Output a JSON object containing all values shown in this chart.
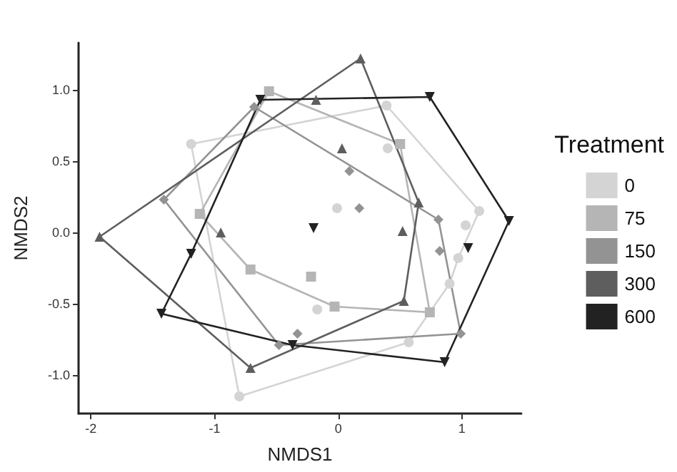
{
  "chart_data": {
    "type": "scatter",
    "xlabel": "NMDS1",
    "ylabel": "NMDS2",
    "legend_title": "Treatment",
    "legend": "right",
    "grid": false,
    "xlim": [
      -2.1,
      1.48
    ],
    "xticks": [
      -2,
      -1,
      0,
      1
    ],
    "ylim": [
      -1.27,
      1.33
    ],
    "yticks": [
      {
        "value": -1,
        "label": "-1.0"
      },
      {
        "value": -0.5,
        "label": "-0.5"
      },
      {
        "value": 0,
        "label": "0.0"
      },
      {
        "value": 0.5,
        "label": "0.5"
      },
      {
        "value": 1,
        "label": "1.0"
      }
    ],
    "series": [
      {
        "name": "0",
        "color": "#d4d4d4",
        "marker": "circle",
        "x": [
          -1.19,
          0.39,
          1.14,
          1.03,
          0.97,
          0.9,
          0.57,
          -0.8,
          0.4,
          -0.01,
          -0.17
        ],
        "values": [
          0.62,
          0.89,
          0.15,
          0.05,
          -0.18,
          -0.36,
          -0.77,
          -1.15,
          0.59,
          0.17,
          -0.54
        ]
      },
      {
        "name": "75",
        "color": "#b5b5b5",
        "marker": "square",
        "x": [
          -0.56,
          0.5,
          0.74,
          -0.03,
          -0.71,
          -1.12,
          -0.22
        ],
        "values": [
          0.99,
          0.62,
          -0.56,
          -0.52,
          -0.26,
          0.13,
          -0.31
        ]
      },
      {
        "name": "150",
        "color": "#939393",
        "marker": "diamond",
        "x": [
          -0.68,
          0.81,
          0.99,
          -0.48,
          -1.41,
          -0.33,
          0.82,
          0.09,
          0.17
        ],
        "values": [
          0.88,
          0.09,
          -0.71,
          -0.79,
          0.23,
          -0.71,
          -0.13,
          0.43,
          0.17
        ]
      },
      {
        "name": "300",
        "color": "#5e5e5e",
        "marker": "triangle",
        "x": [
          -1.93,
          0.18,
          0.65,
          0.53,
          -0.71,
          -0.18,
          0.03,
          0.52,
          -0.95
        ],
        "values": [
          -0.03,
          1.22,
          0.21,
          -0.48,
          -0.95,
          0.93,
          0.59,
          0.01,
          0.0
        ]
      },
      {
        "name": "600",
        "color": "#222222",
        "marker": "triangle-down",
        "x": [
          -0.63,
          0.74,
          1.38,
          0.86,
          -0.37,
          -1.43,
          -1.19,
          -0.2,
          1.05
        ],
        "values": [
          0.93,
          0.95,
          0.08,
          -0.91,
          -0.79,
          -0.57,
          -0.15,
          0.03,
          -0.11
        ]
      },
      {
        "type": "line",
        "color": "#d4d4d4",
        "marker": "none",
        "x": [
          -1.19,
          0.39,
          1.14
        ],
        "values": [
          0.62,
          0.89,
          0.15
        ]
      },
      {
        "type": "line",
        "color": "#d4d4d4",
        "marker": "none",
        "x": [
          -1.19,
          -0.8,
          0.57,
          0.9,
          0.97,
          1.14
        ],
        "values": [
          0.62,
          -1.15,
          -0.77,
          -0.36,
          -0.18,
          0.15
        ]
      },
      {
        "type": "line",
        "color": "#b5b5b5",
        "marker": "none",
        "x": [
          -1.12,
          -0.56,
          0.5,
          0.74
        ],
        "values": [
          0.13,
          0.99,
          0.62,
          -0.56
        ]
      },
      {
        "type": "line",
        "color": "#b5b5b5",
        "marker": "none",
        "x": [
          -1.12,
          -0.71,
          -0.03,
          0.74
        ],
        "values": [
          0.13,
          -0.26,
          -0.52,
          -0.56
        ]
      },
      {
        "type": "line",
        "color": "#939393",
        "marker": "none",
        "x": [
          -1.41,
          -0.68,
          0.81,
          0.99
        ],
        "values": [
          0.23,
          0.88,
          0.09,
          -0.71
        ]
      },
      {
        "type": "line",
        "color": "#939393",
        "marker": "none",
        "x": [
          -1.41,
          -0.48,
          0.99
        ],
        "values": [
          0.23,
          -0.79,
          -0.71
        ]
      },
      {
        "type": "line",
        "color": "#5e5e5e",
        "marker": "none",
        "x": [
          -1.93,
          0.18,
          0.65
        ],
        "values": [
          -0.03,
          1.22,
          0.21
        ]
      },
      {
        "type": "line",
        "color": "#5e5e5e",
        "marker": "none",
        "x": [
          -1.93,
          -0.71,
          0.53,
          0.65
        ],
        "values": [
          -0.03,
          -0.95,
          -0.48,
          0.21
        ]
      },
      {
        "type": "line",
        "color": "#222222",
        "marker": "none",
        "x": [
          -1.43,
          -1.19,
          -0.63,
          0.74,
          1.38
        ],
        "values": [
          -0.57,
          -0.15,
          0.93,
          0.95,
          0.08
        ]
      },
      {
        "type": "line",
        "color": "#222222",
        "marker": "none",
        "x": [
          -1.43,
          -0.37,
          0.86,
          1.38
        ],
        "values": [
          -0.57,
          -0.79,
          -0.91,
          0.08
        ]
      }
    ]
  }
}
